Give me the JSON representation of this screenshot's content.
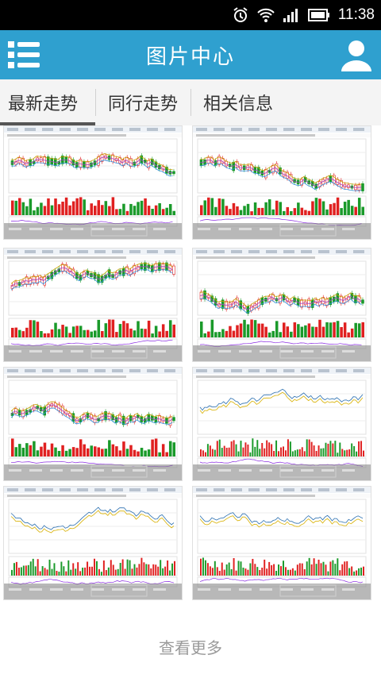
{
  "status_bar": {
    "time": "11:38"
  },
  "app_bar": {
    "title": "图片中心"
  },
  "tabs": [
    {
      "label": "最新走势"
    },
    {
      "label": "同行走势"
    },
    {
      "label": "相关信息"
    }
  ],
  "footer": {
    "more_label": "查看更多"
  },
  "colors": {
    "header": "#2fa0cf",
    "up": "#e02020",
    "down": "#1a9a2a",
    "line": "#2a6fb0"
  }
}
